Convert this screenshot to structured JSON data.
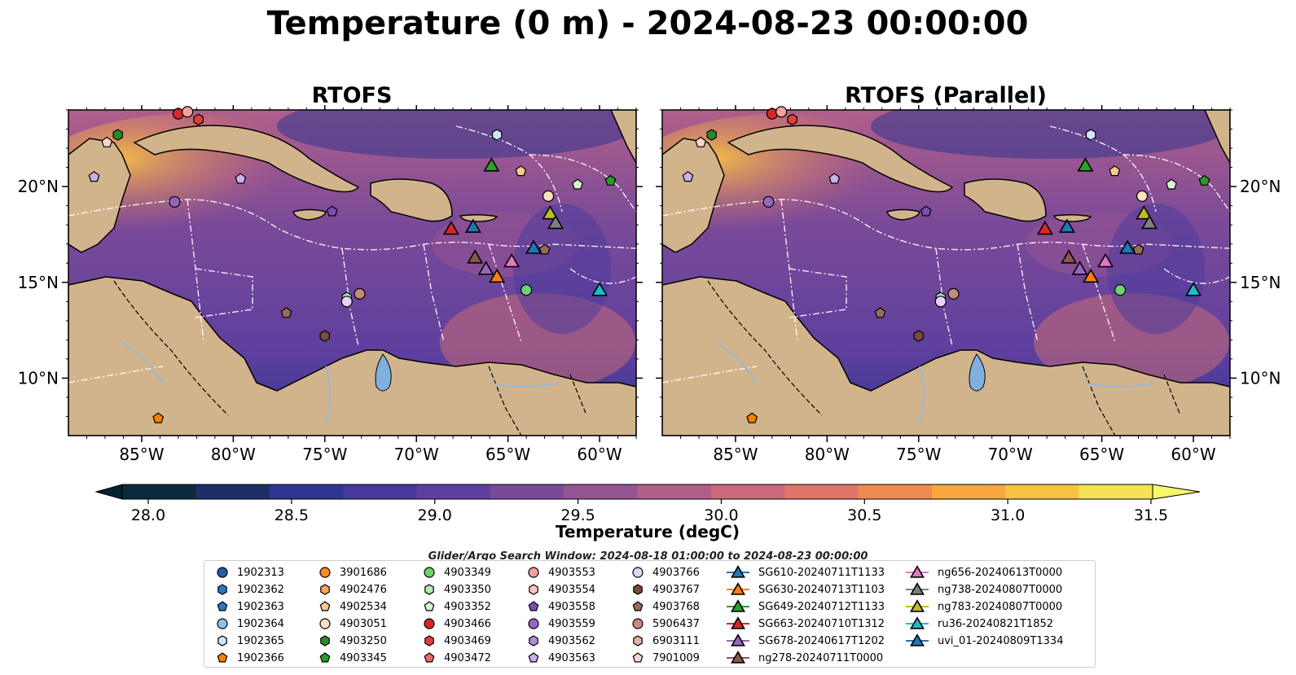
{
  "title": "Temperature (0 m) - 2024-08-23 00:00:00",
  "panels": [
    {
      "title": "RTOFS"
    },
    {
      "title": "RTOFS (Parallel)"
    }
  ],
  "map": {
    "lon_range": [
      -89,
      -58
    ],
    "lat_range": [
      7,
      24
    ],
    "lon_ticks": [
      "85°W",
      "80°W",
      "75°W",
      "70°W",
      "65°W",
      "60°W"
    ],
    "lat_ticks": [
      "20°N",
      "15°N",
      "10°N"
    ],
    "land_color": "#d2b48c",
    "lake_color": "#7fb0e0"
  },
  "colorbar": {
    "label": "Temperature (degC)",
    "ticks": [
      "28.0",
      "28.5",
      "29.0",
      "29.5",
      "30.0",
      "30.5",
      "31.0",
      "31.5"
    ],
    "colors": [
      "#0b2a3d",
      "#1d2f66",
      "#2f3590",
      "#47399e",
      "#5e3f9e",
      "#7a4a98",
      "#955493",
      "#b05f8a",
      "#cb697a",
      "#e0756a",
      "#f08a52",
      "#f9a642",
      "#f8c342",
      "#f5e255"
    ],
    "min_color": "#05202e",
    "max_color": "#f5f76a"
  },
  "search_window": "Glider/Argo Search Window: 2024-08-18 01:00:00 to 2024-08-23 00:00:00",
  "legend": {
    "columns": [
      [
        {
          "label": "1902313",
          "shape": "circle",
          "color": "#1f5fa8"
        },
        {
          "label": "1902362",
          "shape": "hexagon",
          "color": "#2b77c4"
        },
        {
          "label": "1902363",
          "shape": "pentagon",
          "color": "#2b77c4"
        },
        {
          "label": "1902364",
          "shape": "circle",
          "color": "#8fc1ea"
        },
        {
          "label": "1902365",
          "shape": "hexagon",
          "color": "#cfe6f7"
        },
        {
          "label": "1902366",
          "shape": "pentagon",
          "color": "#f77f00"
        }
      ],
      [
        {
          "label": "3901686",
          "shape": "circle",
          "color": "#f78b2a"
        },
        {
          "label": "4902476",
          "shape": "hexagon",
          "color": "#f9a65a"
        },
        {
          "label": "4902534",
          "shape": "pentagon",
          "color": "#fbc88c"
        },
        {
          "label": "4903051",
          "shape": "circle",
          "color": "#fde1bf"
        },
        {
          "label": "4903250",
          "shape": "hexagon",
          "color": "#2a8a2a"
        },
        {
          "label": "4903345",
          "shape": "pentagon",
          "color": "#2a9a2a"
        }
      ],
      [
        {
          "label": "4903349",
          "shape": "circle",
          "color": "#6ed36e"
        },
        {
          "label": "4903350",
          "shape": "hexagon",
          "color": "#b5eab5"
        },
        {
          "label": "4903352",
          "shape": "pentagon",
          "color": "#d9f7d0"
        },
        {
          "label": "4903466",
          "shape": "circle",
          "color": "#d62728"
        },
        {
          "label": "4903469",
          "shape": "hexagon",
          "color": "#e0403a"
        },
        {
          "label": "4903472",
          "shape": "pentagon",
          "color": "#ef6a62"
        }
      ],
      [
        {
          "label": "4903553",
          "shape": "circle",
          "color": "#f4a0a0"
        },
        {
          "label": "4903554",
          "shape": "hexagon",
          "color": "#fac4c4"
        },
        {
          "label": "4903558",
          "shape": "pentagon",
          "color": "#7b4fb3"
        },
        {
          "label": "4903559",
          "shape": "circle",
          "color": "#9467bd"
        },
        {
          "label": "4903562",
          "shape": "hexagon",
          "color": "#b08fd6"
        },
        {
          "label": "4903563",
          "shape": "pentagon",
          "color": "#c9b0e8"
        }
      ],
      [
        {
          "label": "4903766",
          "shape": "circle",
          "color": "#e6d2f5"
        },
        {
          "label": "4903767",
          "shape": "hexagon",
          "color": "#7a4a3a"
        },
        {
          "label": "4903768",
          "shape": "pentagon",
          "color": "#9a6b58"
        },
        {
          "label": "5906437",
          "shape": "circle",
          "color": "#c48a7a"
        },
        {
          "label": "6903111",
          "shape": "hexagon",
          "color": "#e2b2a5"
        },
        {
          "label": "7901009",
          "shape": "pentagon",
          "color": "#f7d6cc"
        }
      ],
      [
        {
          "label": "SG610-20240711T1133",
          "shape": "triangle",
          "color": "#1f77b4"
        },
        {
          "label": "SG630-20240713T1103",
          "shape": "triangle",
          "color": "#ff7f0e"
        },
        {
          "label": "SG649-20240712T1133",
          "shape": "triangle",
          "color": "#2ca02c"
        },
        {
          "label": "SG663-20240710T1312",
          "shape": "triangle",
          "color": "#d62728"
        },
        {
          "label": "SG678-20240617T1202",
          "shape": "triangle",
          "color": "#9467bd"
        },
        {
          "label": "ng278-20240711T0000",
          "shape": "triangle",
          "color": "#8c564b"
        }
      ],
      [
        {
          "label": "ng656-20240613T0000",
          "shape": "triangle",
          "color": "#e377c2"
        },
        {
          "label": "ng738-20240807T0000",
          "shape": "triangle",
          "color": "#7f7f7f"
        },
        {
          "label": "ng783-20240807T0000",
          "shape": "triangle",
          "color": "#bcbd22"
        },
        {
          "label": "ru36-20240821T1852",
          "shape": "triangle",
          "color": "#17becf"
        },
        {
          "label": "uvi_01-20240809T1334",
          "shape": "triangle",
          "color": "#1f77b4"
        }
      ]
    ]
  },
  "markers": [
    {
      "id": "4903466",
      "lon": -83.0,
      "lat": 23.8
    },
    {
      "id": "4903553",
      "lon": -82.5,
      "lat": 23.9
    },
    {
      "id": "4903469",
      "lon": -81.9,
      "lat": 23.5
    },
    {
      "id": "1902365",
      "lon": -84.3,
      "lat": 24.1
    },
    {
      "id": "4903250",
      "lon": -86.3,
      "lat": 22.7
    },
    {
      "id": "7901009",
      "lon": -86.9,
      "lat": 22.3
    },
    {
      "id": "4903563",
      "lon": -87.6,
      "lat": 20.5
    },
    {
      "id": "4903559",
      "lon": -83.2,
      "lat": 19.2
    },
    {
      "id": "4903563",
      "lon": -79.6,
      "lat": 20.4
    },
    {
      "id": "4903558",
      "lon": -74.6,
      "lat": 18.7
    },
    {
      "id": "1902365",
      "lon": -65.6,
      "lat": 22.7
    },
    {
      "id": "4902534",
      "lon": -64.3,
      "lat": 20.8
    },
    {
      "id": "4903051",
      "lon": -62.8,
      "lat": 19.5
    },
    {
      "id": "4903352",
      "lon": -61.2,
      "lat": 20.1
    },
    {
      "id": "4903345",
      "lon": -59.4,
      "lat": 20.3
    },
    {
      "id": "1902364",
      "lon": -60.7,
      "lat": 24.1
    },
    {
      "id": "1902313",
      "lon": -57.9,
      "lat": 21.5
    },
    {
      "id": "1902363",
      "lon": -63.0,
      "lat": 24.2
    },
    {
      "id": "4903768",
      "lon": -63.0,
      "lat": 16.7
    },
    {
      "id": "4903349",
      "lon": -64.0,
      "lat": 14.6
    },
    {
      "id": "4903350",
      "lon": -73.8,
      "lat": 14.2
    },
    {
      "id": "4903766",
      "lon": -73.8,
      "lat": 14.0
    },
    {
      "id": "5906437",
      "lon": -73.1,
      "lat": 14.4
    },
    {
      "id": "4903768",
      "lon": -77.1,
      "lat": 13.4
    },
    {
      "id": "4903767",
      "lon": -75.0,
      "lat": 12.2
    },
    {
      "id": "1902366",
      "lon": -84.1,
      "lat": 7.9
    },
    {
      "id": "SG649-20240712T1133",
      "lon": -65.9,
      "lat": 21.1
    },
    {
      "id": "SG663-20240710T1312",
      "lon": -68.1,
      "lat": 17.8
    },
    {
      "id": "SG610-20240711T1133",
      "lon": -66.9,
      "lat": 17.9
    },
    {
      "id": "ng783-20240807T0000",
      "lon": -62.7,
      "lat": 18.6
    },
    {
      "id": "ng738-20240807T0000",
      "lon": -62.4,
      "lat": 18.1
    },
    {
      "id": "uvi_01-20240809T1334",
      "lon": -63.6,
      "lat": 16.8
    },
    {
      "id": "ng278-20240711T0000",
      "lon": -66.8,
      "lat": 16.3
    },
    {
      "id": "SG678-20240617T1202",
      "lon": -66.2,
      "lat": 15.7
    },
    {
      "id": "SG630-20240713T1103",
      "lon": -65.6,
      "lat": 15.3
    },
    {
      "id": "ng656-20240613T0000",
      "lon": -64.8,
      "lat": 16.1
    },
    {
      "id": "ru36-20240821T1852",
      "lon": -60.0,
      "lat": 14.6
    }
  ]
}
